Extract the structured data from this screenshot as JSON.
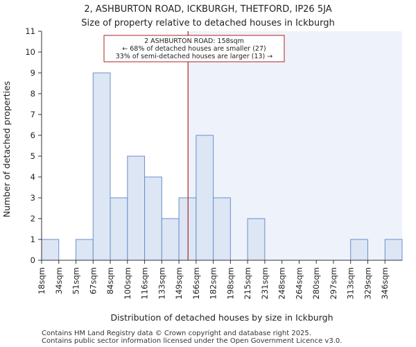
{
  "chart_data": {
    "type": "bar",
    "title": "2, ASHBURTON ROAD, ICKBURGH, THETFORD, IP26 5JA",
    "subtitle": "Size of property relative to detached houses in Ickburgh",
    "xlabel": "Distribution of detached houses by size in Ickburgh",
    "ylabel": "Number of detached properties",
    "categories": [
      "18sqm",
      "34sqm",
      "51sqm",
      "67sqm",
      "84sqm",
      "100sqm",
      "116sqm",
      "133sqm",
      "149sqm",
      "166sqm",
      "182sqm",
      "198sqm",
      "215sqm",
      "231sqm",
      "248sqm",
      "264sqm",
      "280sqm",
      "297sqm",
      "313sqm",
      "329sqm",
      "346sqm"
    ],
    "values": [
      1,
      0,
      1,
      9,
      3,
      5,
      4,
      2,
      3,
      6,
      3,
      0,
      2,
      0,
      0,
      0,
      0,
      0,
      1,
      0,
      1
    ],
    "ylim": [
      0,
      11
    ],
    "yticks": [
      0,
      1,
      2,
      3,
      4,
      5,
      6,
      7,
      8,
      9,
      10,
      11
    ],
    "grid": false,
    "marker": {
      "value_sqm": 158,
      "label_line1": "2 ASHBURTON ROAD: 158sqm",
      "label_line2": "← 68% of detached houses are smaller (27)",
      "label_line3": "33% of semi-detached houses are larger (13) →"
    },
    "colors": {
      "bar_fill": "#dce6f5",
      "bar_stroke": "#6a8fc8",
      "highlight_region": "#eef2fb",
      "marker_line": "#b22222",
      "annotation_border": "#b22222"
    }
  },
  "footer": {
    "line1": "Contains HM Land Registry data © Crown copyright and database right 2025.",
    "line2": "Contains public sector information licensed under the Open Government Licence v3.0."
  }
}
